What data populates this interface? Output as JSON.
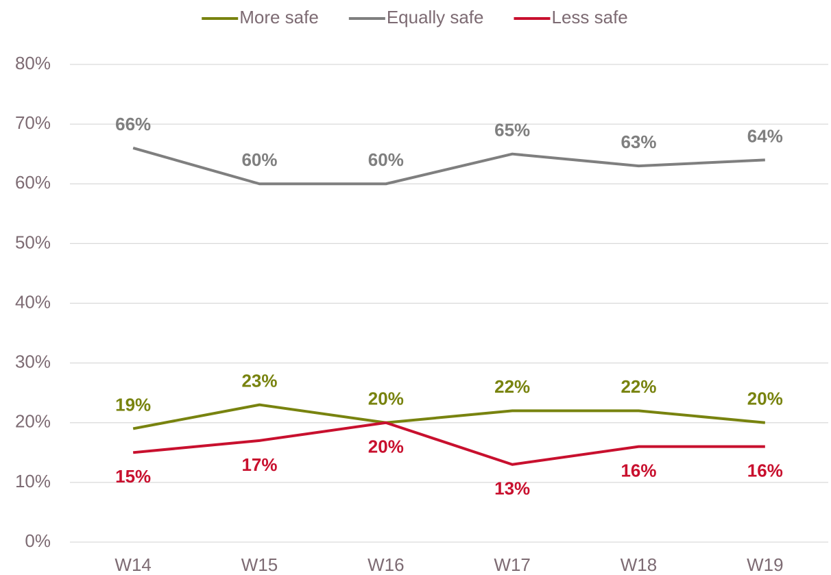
{
  "chart_data": {
    "type": "line",
    "categories": [
      "W14",
      "W15",
      "W16",
      "W17",
      "W18",
      "W19"
    ],
    "series": [
      {
        "name": "More safe",
        "color": "#78830f",
        "values": [
          19,
          23,
          20,
          22,
          22,
          20
        ],
        "value_labels": [
          "19%",
          "23%",
          "20%",
          "22%",
          "22%",
          "20%"
        ],
        "label_position": "above"
      },
      {
        "name": "Equally safe",
        "color": "#7f7f7f",
        "values": [
          66,
          60,
          60,
          65,
          63,
          64
        ],
        "value_labels": [
          "66%",
          "60%",
          "60%",
          "65%",
          "63%",
          "64%"
        ],
        "label_position": "above"
      },
      {
        "name": "Less safe",
        "color": "#c8102e",
        "values": [
          15,
          17,
          20,
          13,
          16,
          16
        ],
        "value_labels": [
          "15%",
          "17%",
          "20%",
          "13%",
          "16%",
          "16%"
        ],
        "label_position": "below"
      }
    ],
    "ylim": [
      0,
      80
    ],
    "yticks": [
      {
        "value": 0,
        "label": "0%"
      },
      {
        "value": 10,
        "label": "10%"
      },
      {
        "value": 20,
        "label": "20%"
      },
      {
        "value": 30,
        "label": "30%"
      },
      {
        "value": 40,
        "label": "40%"
      },
      {
        "value": 50,
        "label": "50%"
      },
      {
        "value": 60,
        "label": "60%"
      },
      {
        "value": 70,
        "label": "70%"
      },
      {
        "value": 80,
        "label": "80%"
      }
    ],
    "grid": true,
    "legend": "top"
  }
}
